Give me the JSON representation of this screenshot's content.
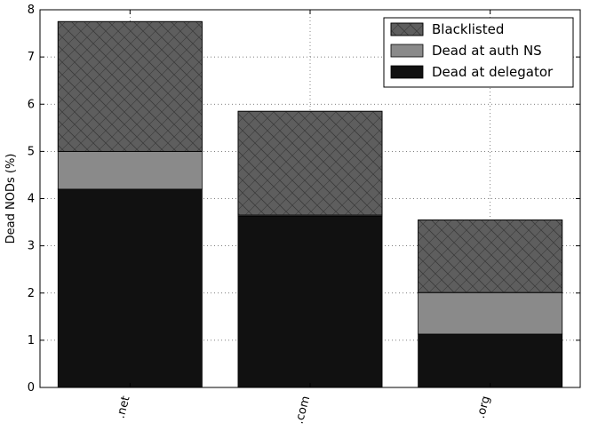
{
  "chart_data": {
    "type": "bar",
    "stacked": true,
    "categories": [
      ".net",
      ".com",
      ".org"
    ],
    "series": [
      {
        "name": "Dead at delegator",
        "values": [
          4.2,
          3.63,
          1.13
        ],
        "color": "#111111",
        "hatch": "none"
      },
      {
        "name": "Dead at auth NS",
        "values": [
          0.8,
          0.02,
          0.88
        ],
        "color": "#8a8a8a",
        "hatch": "none"
      },
      {
        "name": "Blacklisted",
        "values": [
          2.75,
          2.2,
          1.54
        ],
        "color": "#5e5e5e",
        "hatch": "cross"
      }
    ],
    "title": "",
    "xlabel": "",
    "ylabel": "Dead NODs (%)",
    "ylim": [
      0,
      8
    ],
    "yticks": [
      "0",
      "1",
      "2",
      "3",
      "4",
      "5",
      "6",
      "7",
      "8"
    ],
    "grid": true,
    "legend_position": "top-right",
    "legend_order": [
      "Blacklisted",
      "Dead at auth NS",
      "Dead at delegator"
    ]
  }
}
